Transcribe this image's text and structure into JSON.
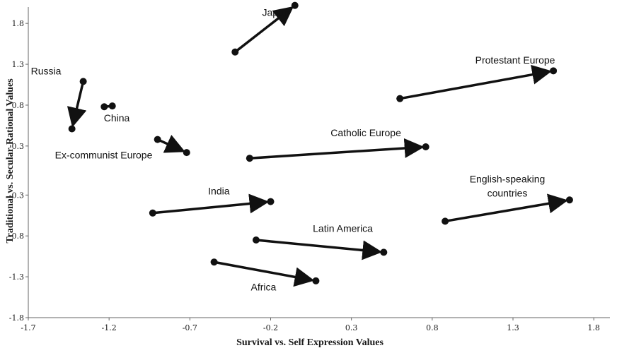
{
  "chart_data": {
    "type": "scatter",
    "xlabel": "Survival vs. Self Expression Values",
    "ylabel": "Traditional vs. Secular-Rational Values",
    "xlim": [
      -1.7,
      1.9
    ],
    "ylim": [
      -1.8,
      2.0
    ],
    "xticks": [
      "-1.7",
      "-1.2",
      "-0.7",
      "-0.2",
      "0.3",
      "0.8",
      "1.3",
      "1.8"
    ],
    "yticks": [
      "1.8",
      "1.3",
      "0.8",
      "0.3",
      "-0.3",
      "-0.8",
      "-1.3",
      "-1.8"
    ],
    "series": [
      {
        "name": "Japan",
        "start": [
          -0.42,
          1.45
        ],
        "end": [
          -0.05,
          2.02
        ],
        "arrow": true
      },
      {
        "name": "Protestant Europe",
        "start": [
          0.6,
          0.88
        ],
        "end": [
          1.55,
          1.22
        ],
        "arrow": true
      },
      {
        "name": "Russia",
        "start": [
          -1.36,
          1.09
        ],
        "end": [
          -1.43,
          0.51
        ],
        "arrow": true
      },
      {
        "name": "China",
        "start": [
          -1.23,
          0.78
        ],
        "end": [
          -1.18,
          0.79
        ],
        "arrow": false
      },
      {
        "name": "Ex-communist Europe",
        "start": [
          -0.9,
          0.38
        ],
        "end": [
          -0.72,
          0.22
        ],
        "arrow": true
      },
      {
        "name": "Catholic Europe",
        "start": [
          -0.33,
          0.15
        ],
        "end": [
          0.76,
          0.29
        ],
        "arrow": true
      },
      {
        "name": "India",
        "start": [
          -0.93,
          -0.52
        ],
        "end": [
          -0.2,
          -0.38
        ],
        "arrow": true
      },
      {
        "name": "English-speaking countries",
        "start": [
          0.88,
          -0.62
        ],
        "end": [
          1.65,
          -0.36
        ],
        "arrow": true
      },
      {
        "name": "Latin America",
        "start": [
          -0.29,
          -0.85
        ],
        "end": [
          0.5,
          -1.0
        ],
        "arrow": true
      },
      {
        "name": "Africa",
        "start": [
          -0.55,
          -1.12
        ],
        "end": [
          0.08,
          -1.35
        ],
        "arrow": true
      }
    ],
    "grid": false,
    "legend": "none"
  }
}
